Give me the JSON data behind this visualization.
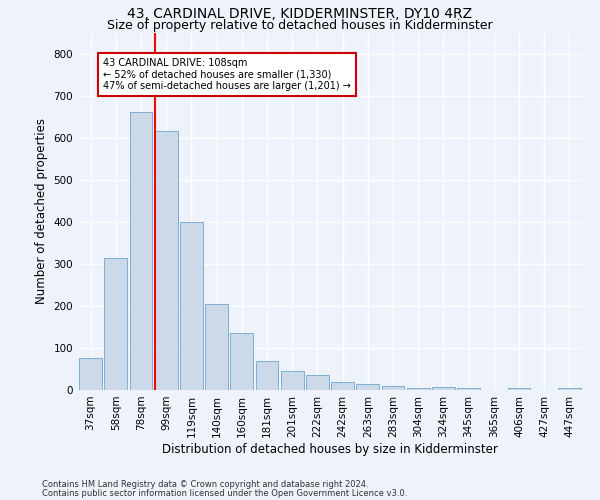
{
  "title": "43, CARDINAL DRIVE, KIDDERMINSTER, DY10 4RZ",
  "subtitle": "Size of property relative to detached houses in Kidderminster",
  "xlabel": "Distribution of detached houses by size in Kidderminster",
  "ylabel": "Number of detached properties",
  "footnote1": "Contains HM Land Registry data © Crown copyright and database right 2024.",
  "footnote2": "Contains public sector information licensed under the Open Government Licence v3.0.",
  "categories": [
    "37sqm",
    "58sqm",
    "78sqm",
    "99sqm",
    "119sqm",
    "140sqm",
    "160sqm",
    "181sqm",
    "201sqm",
    "222sqm",
    "242sqm",
    "263sqm",
    "283sqm",
    "304sqm",
    "324sqm",
    "345sqm",
    "365sqm",
    "406sqm",
    "427sqm",
    "447sqm"
  ],
  "values": [
    75,
    315,
    660,
    615,
    400,
    205,
    135,
    70,
    45,
    35,
    20,
    15,
    10,
    5,
    7,
    5,
    0,
    5,
    0,
    5
  ],
  "bar_color": "#ccd9e8",
  "bar_edge_color": "#7bafd4",
  "annotation_text": "43 CARDINAL DRIVE: 108sqm\n← 52% of detached houses are smaller (1,330)\n47% of semi-detached houses are larger (1,201) →",
  "annotation_box_color": "#ffffff",
  "annotation_box_edge": "#cc0000",
  "ylim": [
    0,
    850
  ],
  "yticks": [
    0,
    100,
    200,
    300,
    400,
    500,
    600,
    700,
    800
  ],
  "background_color": "#eef2fa",
  "grid_color": "#ffffff",
  "title_fontsize": 10,
  "subtitle_fontsize": 9,
  "axis_label_fontsize": 8.5,
  "tick_fontsize": 7.5,
  "footnote_fontsize": 6
}
